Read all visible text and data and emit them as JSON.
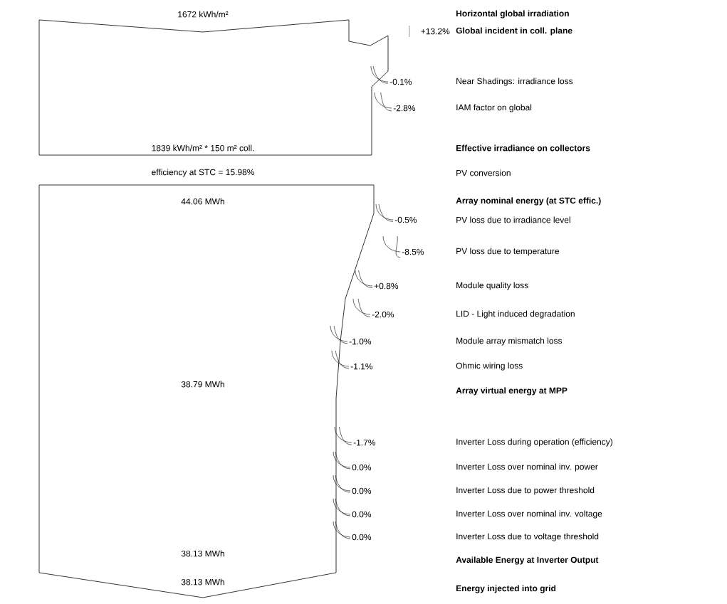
{
  "chart_data": {
    "type": "other",
    "categories": [
      "**Horizontal global irradiation**",
      "**Global incident in coll. plane**",
      "Near Shadings: irradiance loss",
      "IAM factor on global",
      "**Effective irradiance on collectors**",
      "PV conversion",
      "**Array nominal energy (at STC effic.)**",
      "PV loss due to irradiance level",
      "PV loss due to temperature",
      "Module quality loss",
      "LID - Light induced degradation",
      "Module array mismatch loss",
      "Ohmic wiring loss",
      "**Array virtual energy at MPP**",
      "Inverter Loss during operation (efficiency)",
      "Inverter Loss over nominal inv. power",
      "Inverter Loss due to power threshold",
      "Inverter Loss over nominal inv. voltage",
      "Inverter Loss due to voltage threshold",
      "**Available Energy at Inverter Output**",
      "**Energy injected into grid**"
    ],
    "values": [
      1672,
      13.2,
      -0.1,
      -2.8,
      1839,
      15.98,
      44.06,
      -0.5,
      -8.5,
      0.8,
      -2.0,
      -1.0,
      -1.1,
      38.79,
      -1.7,
      0.0,
      0.0,
      0.0,
      0.0,
      38.13,
      38.13
    ],
    "value_labels": [
      "1672 kWh/m²",
      "+13.2%",
      "-0.1%",
      "-2.8%",
      "1839 kWh/m² * 150 m² coll.",
      "efficiency at STC = 15.98%",
      "44.06 MWh",
      "-0.5%",
      "-8.5%",
      "+0.8%",
      "-2.0%",
      "-1.0%",
      "-1.1%",
      "38.79 MWh",
      "-1.7%",
      "0.0%",
      "0.0%",
      "0.0%",
      "0.0%",
      "38.13 MWh",
      "38.13 MWh"
    ]
  }
}
